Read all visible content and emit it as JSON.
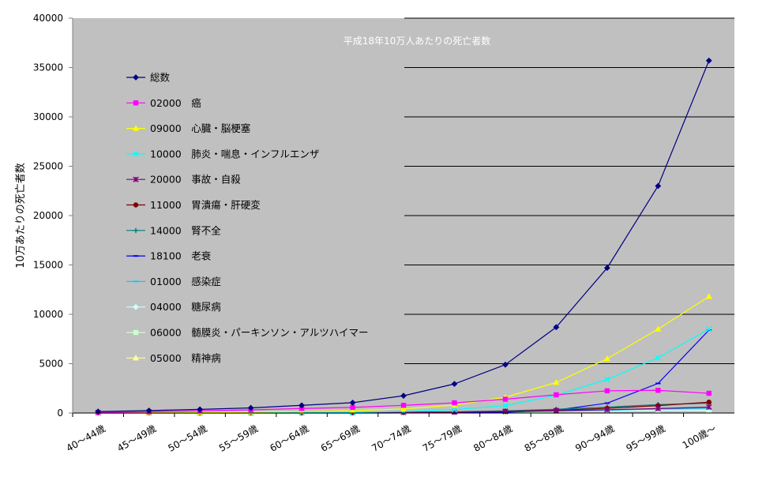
{
  "chart_data": {
    "type": "line",
    "title": "平成18年10万人あたりの死亡者数",
    "ylabel": "10万あたりの死亡者数",
    "xlabel": "",
    "ylim": [
      0,
      40000
    ],
    "yticks": [
      0,
      5000,
      10000,
      15000,
      20000,
      25000,
      30000,
      35000,
      40000
    ],
    "categories": [
      "40～44歳",
      "45～49歳",
      "50～54歳",
      "55～59歳",
      "60～64歳",
      "65～69歳",
      "70～74歳",
      "75～79歳",
      "80～84歳",
      "85～89歳",
      "90～94歳",
      "95～99歳",
      "100歳～"
    ],
    "grid": "horizontal",
    "legend_position": "inside-left",
    "plot_background": "#c0c0c0",
    "series": [
      {
        "name": "総数",
        "color": "#000080",
        "marker": "diamond",
        "values": [
          150,
          250,
          370,
          520,
          780,
          1050,
          1750,
          2950,
          4900,
          8700,
          14700,
          23000,
          35700
        ]
      },
      {
        "name": "02000　癌",
        "color": "#ff00ff",
        "marker": "square",
        "values": [
          70,
          130,
          220,
          320,
          460,
          570,
          780,
          1030,
          1400,
          1850,
          2250,
          2300,
          2000
        ]
      },
      {
        "name": "09000　心臓・脳梗塞",
        "color": "#ffff00",
        "marker": "triangle",
        "values": [
          30,
          45,
          70,
          100,
          150,
          230,
          420,
          800,
          1600,
          3100,
          5500,
          8500,
          11800
        ]
      },
      {
        "name": "10000　肺炎・喘息・インフルエンザ",
        "color": "#00ffff",
        "marker": "x",
        "values": [
          5,
          10,
          15,
          25,
          45,
          80,
          160,
          350,
          750,
          1800,
          3400,
          5600,
          8500
        ]
      },
      {
        "name": "20000　事故・自殺",
        "color": "#800080",
        "marker": "star",
        "values": [
          30,
          35,
          40,
          45,
          55,
          65,
          80,
          110,
          160,
          240,
          330,
          450,
          600
        ]
      },
      {
        "name": "11000　胃潰瘍・肝硬変",
        "color": "#800000",
        "marker": "circle",
        "values": [
          10,
          12,
          15,
          18,
          25,
          35,
          60,
          100,
          170,
          280,
          480,
          750,
          1100
        ]
      },
      {
        "name": "14000　腎不全",
        "color": "#008080",
        "marker": "plus",
        "values": [
          5,
          8,
          10,
          15,
          25,
          40,
          70,
          120,
          220,
          380,
          600,
          850,
          1000
        ]
      },
      {
        "name": "18100　老衰",
        "color": "#0000ff",
        "marker": "dash",
        "values": [
          0,
          0,
          0,
          0,
          0,
          0,
          5,
          20,
          80,
          300,
          1000,
          3000,
          8400
        ]
      },
      {
        "name": "01000　感染症",
        "color": "#00ccff",
        "marker": "dash",
        "values": [
          5,
          7,
          9,
          12,
          16,
          22,
          35,
          60,
          100,
          170,
          280,
          420,
          500
        ]
      },
      {
        "name": "04000　糖尿病",
        "color": "#ccffff",
        "marker": "diamond",
        "values": [
          5,
          7,
          10,
          15,
          20,
          30,
          45,
          70,
          110,
          160,
          220,
          270,
          300
        ]
      },
      {
        "name": "06000　髄膜炎・パーキンソン・アルツハイマー",
        "color": "#ccffcc",
        "marker": "square",
        "values": [
          0,
          1,
          2,
          4,
          8,
          15,
          30,
          60,
          110,
          170,
          230,
          260,
          250
        ]
      },
      {
        "name": "05000　精神病",
        "color": "#ffff99",
        "marker": "triangle",
        "values": [
          2,
          3,
          4,
          5,
          7,
          10,
          15,
          30,
          60,
          110,
          180,
          250,
          300
        ]
      }
    ]
  }
}
